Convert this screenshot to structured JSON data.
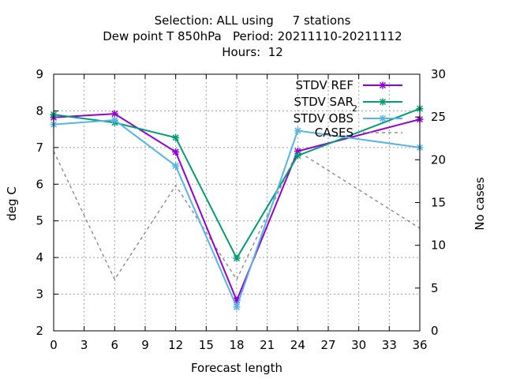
{
  "chart_data": {
    "type": "line",
    "title_lines": [
      "Selection: ALL using     7 stations",
      "Dew point T 850hPa   Period: 20211110-20211112",
      "Hours:  12"
    ],
    "xlabel": "Forecast length",
    "ylabel": "deg C",
    "y2label": "No cases",
    "x_ticks": [
      0,
      3,
      6,
      9,
      12,
      15,
      18,
      21,
      24,
      27,
      30,
      33,
      36
    ],
    "y_ticks": [
      2,
      3,
      4,
      5,
      6,
      7,
      8,
      9
    ],
    "y2_ticks": [
      0,
      5,
      10,
      15,
      20,
      25,
      30
    ],
    "xlim": [
      0,
      36
    ],
    "ylim": [
      2,
      9
    ],
    "y2lim": [
      0,
      30
    ],
    "grid": true,
    "legend_position": "top-right",
    "series": [
      {
        "name": "STDV REF",
        "axis": "y",
        "color": "#9400d3",
        "style": "line-points",
        "x": [
          0,
          6,
          12,
          18,
          24,
          36
        ],
        "values": [
          7.82,
          7.92,
          6.88,
          2.83,
          6.9,
          7.77
        ]
      },
      {
        "name": "STDV SAR",
        "subscript": "2",
        "axis": "y",
        "color": "#009e73",
        "style": "line-points",
        "x": [
          0,
          6,
          12,
          18,
          24,
          36
        ],
        "values": [
          7.9,
          7.68,
          7.27,
          3.98,
          6.78,
          8.06
        ]
      },
      {
        "name": "STDV OBS",
        "axis": "y",
        "color": "#56b4e9",
        "style": "line-points",
        "x": [
          0,
          6,
          12,
          18,
          24,
          36
        ],
        "values": [
          7.63,
          7.75,
          6.5,
          2.65,
          7.46,
          7.0
        ]
      },
      {
        "name": "CASES",
        "axis": "y2",
        "color": "#909090",
        "style": "dashed",
        "x": [
          0,
          6,
          12,
          18,
          24,
          36
        ],
        "values": [
          21,
          6,
          17,
          6,
          21,
          12
        ]
      }
    ]
  }
}
